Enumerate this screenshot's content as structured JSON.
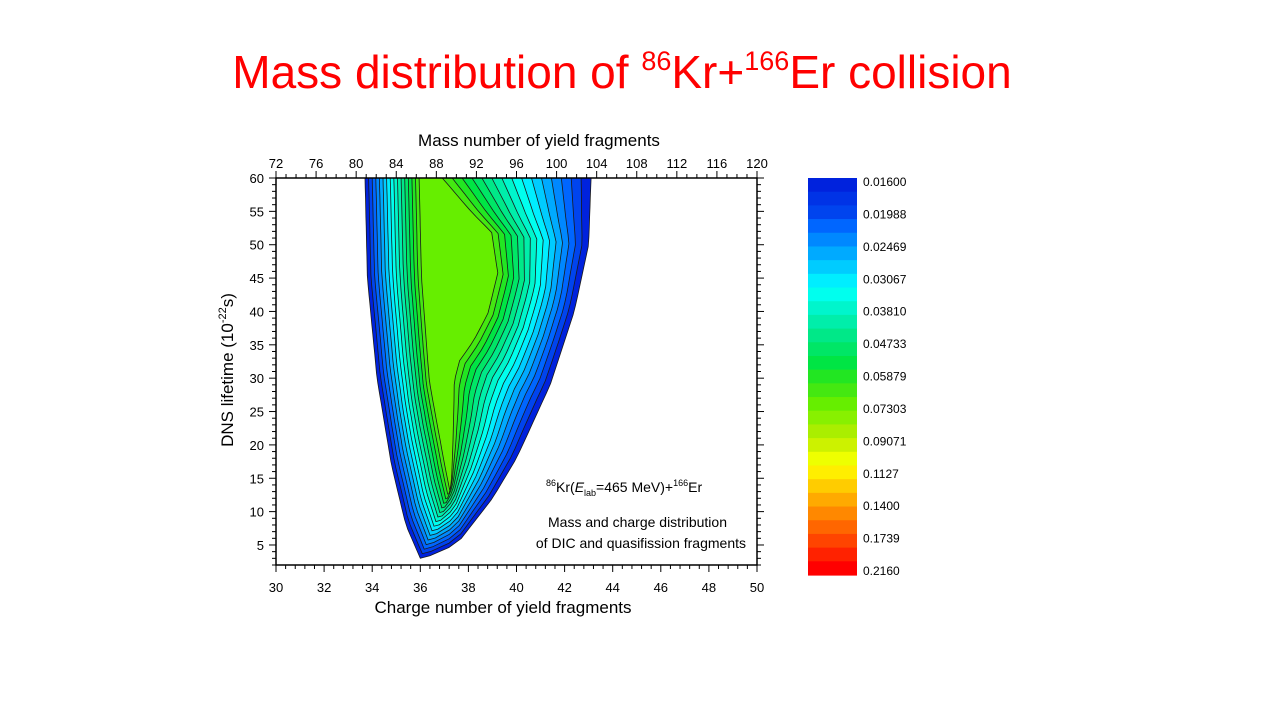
{
  "title": {
    "prefix": "Mass distribution of ",
    "sup1": "86",
    "mid": "Kr+",
    "sup2": "166",
    "suffix": "Er collision"
  },
  "colors": {
    "title": "#ff0000",
    "band_colors": [
      "#0022dd",
      "#0044ee",
      "#0066ff",
      "#0088ff",
      "#00aaff",
      "#00ccff",
      "#00eeff",
      "#00ffee",
      "#00f5cc",
      "#00eeaa",
      "#00e888",
      "#00e666",
      "#00e544",
      "#22e622",
      "#44e811",
      "#66ee00"
    ]
  },
  "chart_data": {
    "type": "heatmap",
    "subtype": "filled-contour",
    "top_xlabel": "Mass number of yield fragments",
    "xlabel": "Charge number of yield fragments",
    "ylabel_main": "DNS lifetime (10",
    "ylabel_exp": "-22",
    "ylabel_end": "s)",
    "xlim": [
      30,
      50
    ],
    "ylim": [
      2,
      60
    ],
    "top_xlim": [
      72,
      120
    ],
    "x_ticks": [
      "30",
      "32",
      "34",
      "36",
      "38",
      "40",
      "42",
      "44",
      "46",
      "48",
      "50"
    ],
    "y_ticks": [
      "5",
      "10",
      "15",
      "20",
      "25",
      "30",
      "35",
      "40",
      "45",
      "50",
      "55",
      "60"
    ],
    "top_ticks": [
      "72",
      "76",
      "80",
      "84",
      "88",
      "92",
      "96",
      "100",
      "104",
      "108",
      "112",
      "116",
      "120"
    ],
    "annotation": {
      "sup1": "86",
      "text1": "Kr(",
      "E": "E",
      "lab": "lab",
      "text2": "=465 MeV)+",
      "sup2": "166",
      "text3": "Er",
      "line2": "Mass and charge distribution",
      "line3": "of DIC and quasifission fragments"
    },
    "colorbar": {
      "labels": [
        "0.01600",
        "0.01988",
        "0.02469",
        "0.03067",
        "0.03810",
        "0.04733",
        "0.05879",
        "0.07303",
        "0.09071",
        "0.1127",
        "0.1400",
        "0.1739",
        "0.2160"
      ],
      "colors": [
        "#0022dd",
        "#0033e6",
        "#0044ee",
        "#0066ff",
        "#0088ff",
        "#00aaff",
        "#00ccff",
        "#00eeff",
        "#00ffee",
        "#00f5cc",
        "#00eeaa",
        "#00e888",
        "#00e666",
        "#00e544",
        "#22e622",
        "#44e811",
        "#66ee00",
        "#88f000",
        "#aaee00",
        "#ccf200",
        "#eeff00",
        "#ffee00",
        "#ffcc00",
        "#ffaa00",
        "#ff8800",
        "#ff6600",
        "#ff4400",
        "#ff2200",
        "#ff0000"
      ]
    }
  }
}
